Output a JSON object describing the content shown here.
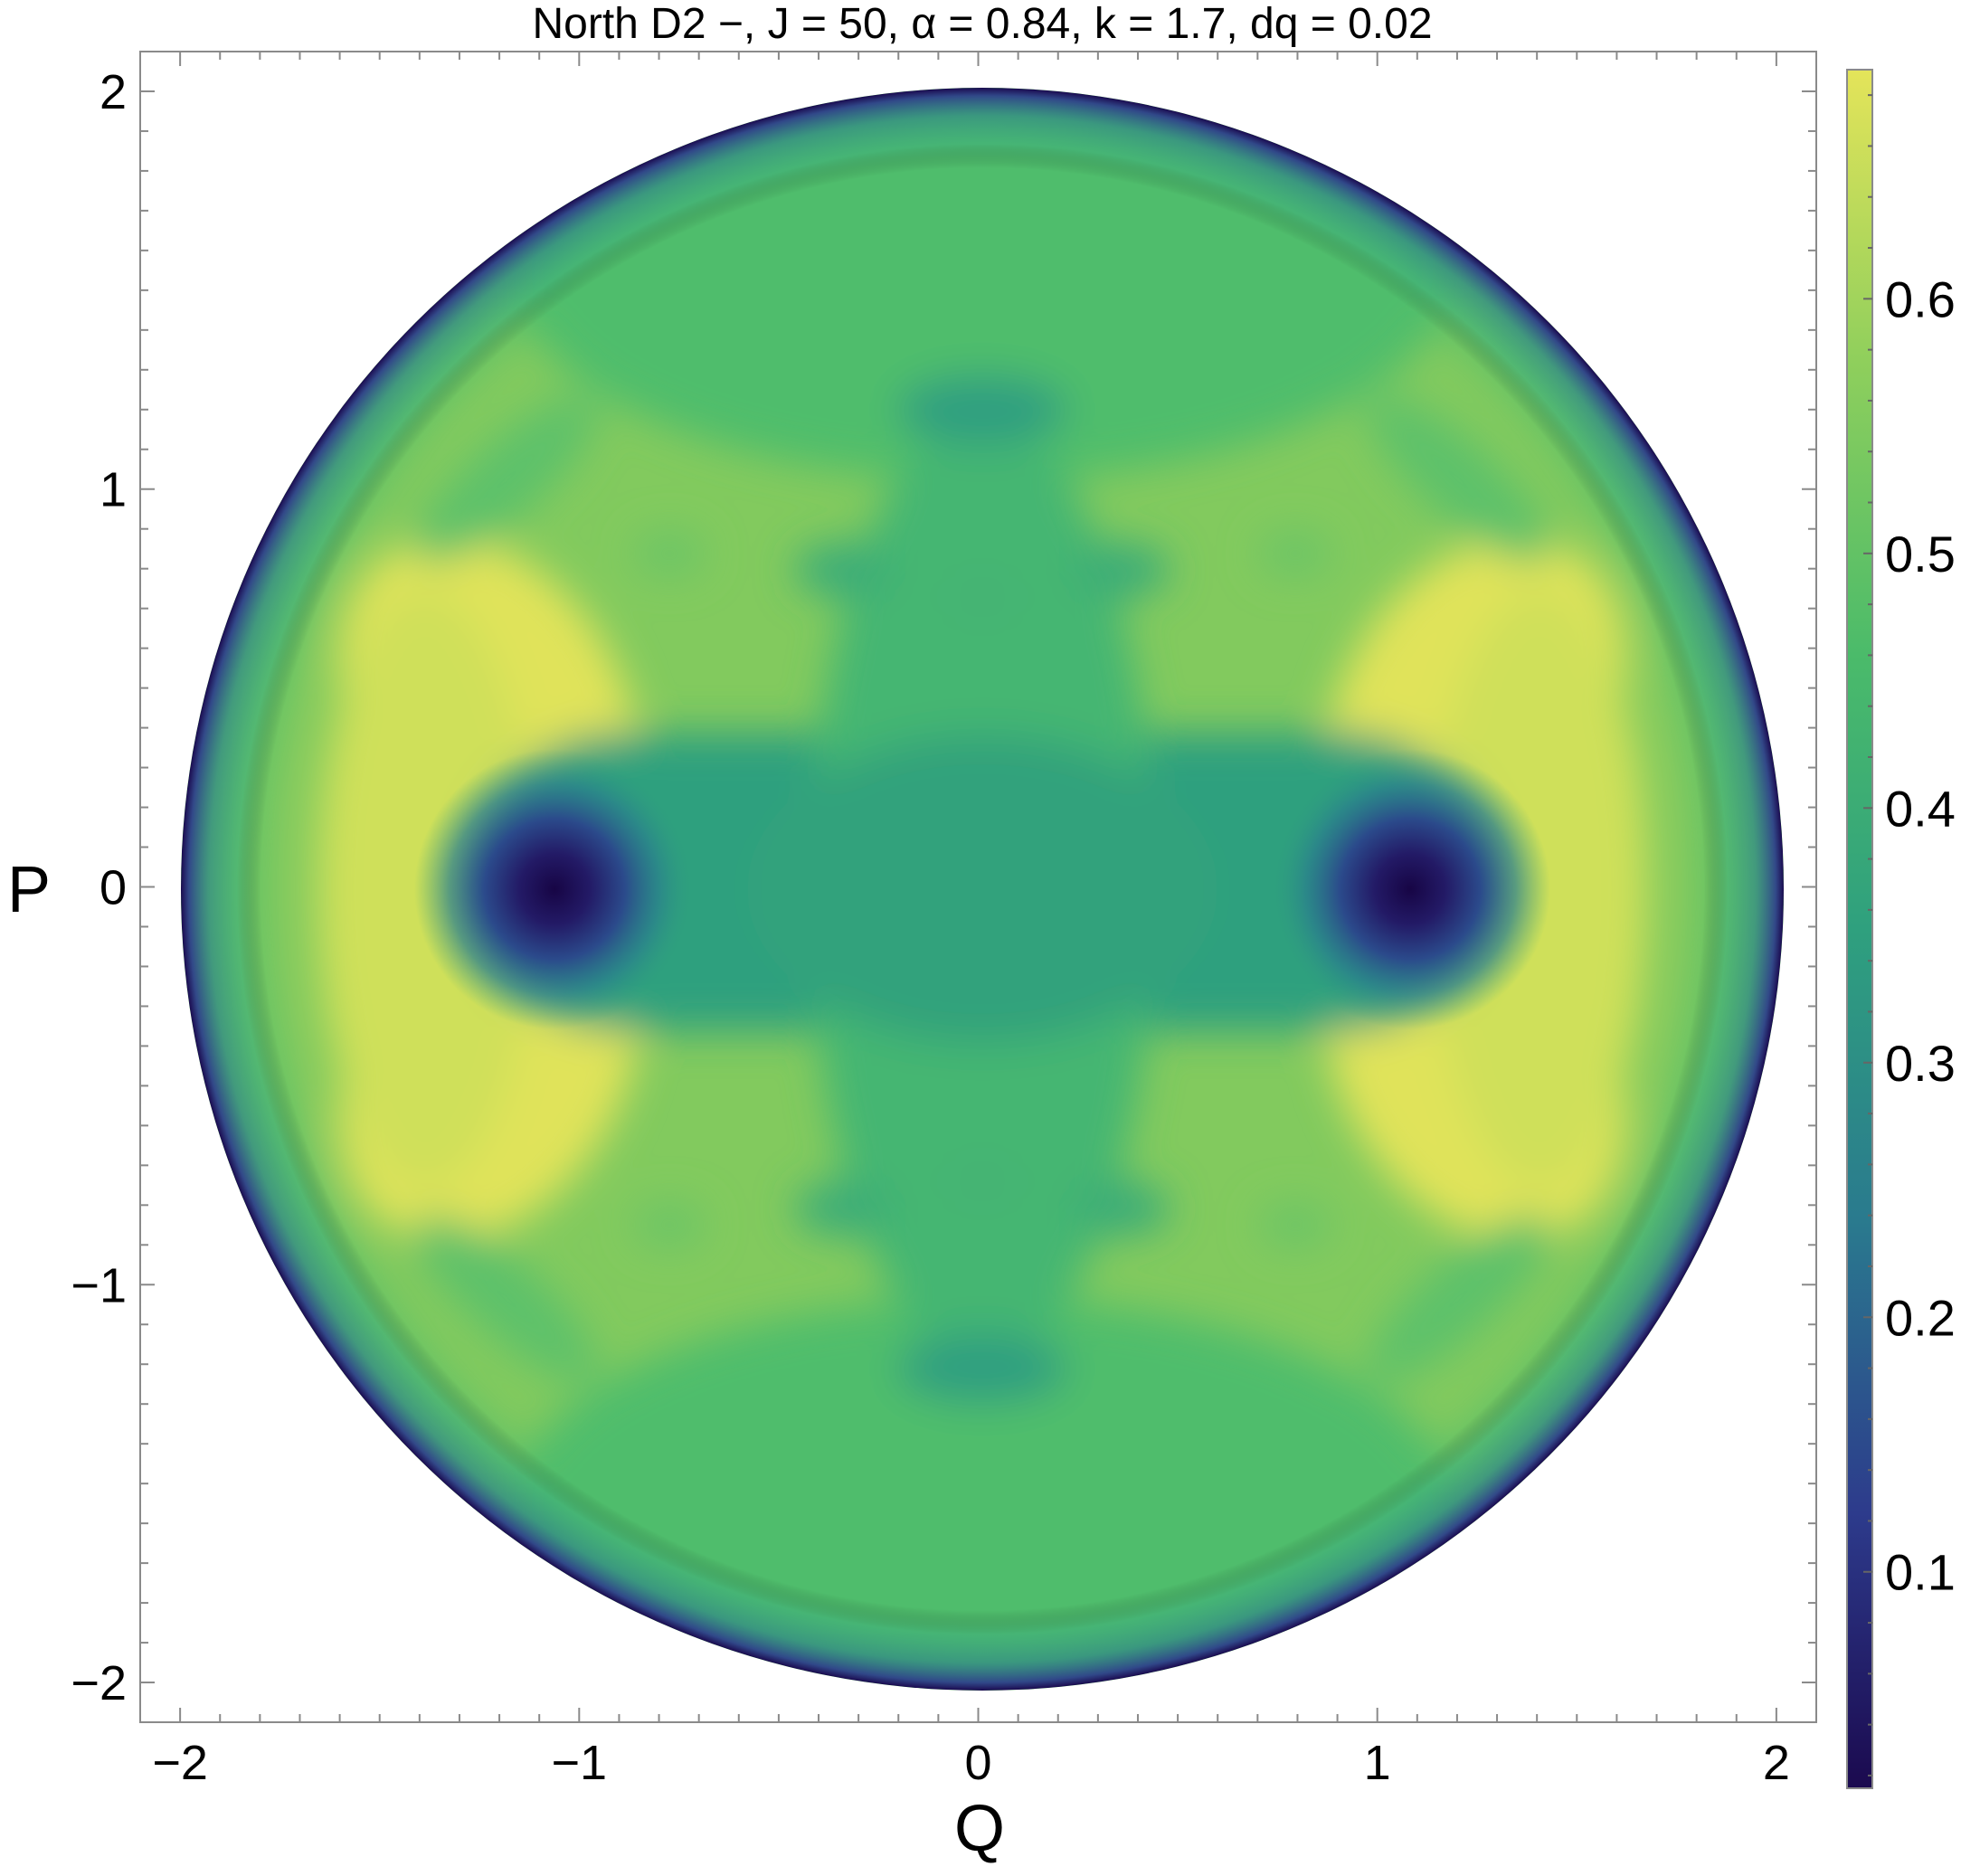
{
  "chart_data": {
    "type": "heatmap",
    "title": "North D2 −, J = 50, α = 0.84, k = 1.7, dq = 0.02",
    "xlabel": "Q",
    "ylabel": "P",
    "xlim": [
      -2.1,
      2.1
    ],
    "ylim": [
      -2.1,
      2.1
    ],
    "x_ticks": [
      -2,
      -1,
      0,
      1,
      2
    ],
    "x_tick_labels": [
      "−2",
      "−1",
      "0",
      "1",
      "2"
    ],
    "y_ticks": [
      -2,
      -1,
      0,
      1,
      2
    ],
    "y_tick_labels": [
      "−2",
      "−1",
      "0",
      "1",
      "2"
    ],
    "domain": {
      "shape": "disk",
      "center": [
        0,
        0
      ],
      "radius": 2
    },
    "colormap": "viridis",
    "colormap_stops": [
      "#1b0a4f",
      "#2d3b8c",
      "#2a7a8e",
      "#2fa07e",
      "#4bbb6a",
      "#8fcf5c",
      "#e4e45a"
    ],
    "colorbar": {
      "min": 0.015,
      "max": 0.69,
      "ticks": [
        0.1,
        0.2,
        0.3,
        0.4,
        0.5,
        0.6
      ],
      "tick_labels": [
        "0.1",
        "0.2",
        "0.3",
        "0.4",
        "0.5",
        "0.6"
      ]
    },
    "field_features": [
      {
        "kind": "minimum",
        "Q": -1.06,
        "P": 0.0,
        "value": 0.02
      },
      {
        "kind": "minimum",
        "Q": 1.06,
        "P": 0.0,
        "value": 0.02
      },
      {
        "kind": "maximum-ridge",
        "Q": -1.3,
        "P": 0.55,
        "value": 0.68
      },
      {
        "kind": "maximum-ridge",
        "Q": 1.3,
        "P": 0.55,
        "value": 0.68
      },
      {
        "kind": "maximum-ridge",
        "Q": -1.3,
        "P": -0.55,
        "value": 0.68
      },
      {
        "kind": "maximum-ridge",
        "Q": 1.3,
        "P": -0.55,
        "value": 0.68
      },
      {
        "kind": "local-dip",
        "Q": 0.0,
        "P": 1.2,
        "value": 0.38
      },
      {
        "kind": "local-dip",
        "Q": 0.0,
        "P": -1.2,
        "value": 0.38
      },
      {
        "kind": "local-dip",
        "Q": -0.35,
        "P": 0.8,
        "value": 0.44
      },
      {
        "kind": "local-dip",
        "Q": 0.35,
        "P": 0.8,
        "value": 0.44
      },
      {
        "kind": "local-dip",
        "Q": -0.35,
        "P": -0.8,
        "value": 0.44
      },
      {
        "kind": "local-dip",
        "Q": 0.35,
        "P": -0.8,
        "value": 0.44
      },
      {
        "kind": "center-plateau",
        "Q": 0.0,
        "P": 0.0,
        "value": 0.33
      },
      {
        "kind": "boundary",
        "Q": 0.0,
        "P": 2.0,
        "value": 0.05
      }
    ]
  }
}
